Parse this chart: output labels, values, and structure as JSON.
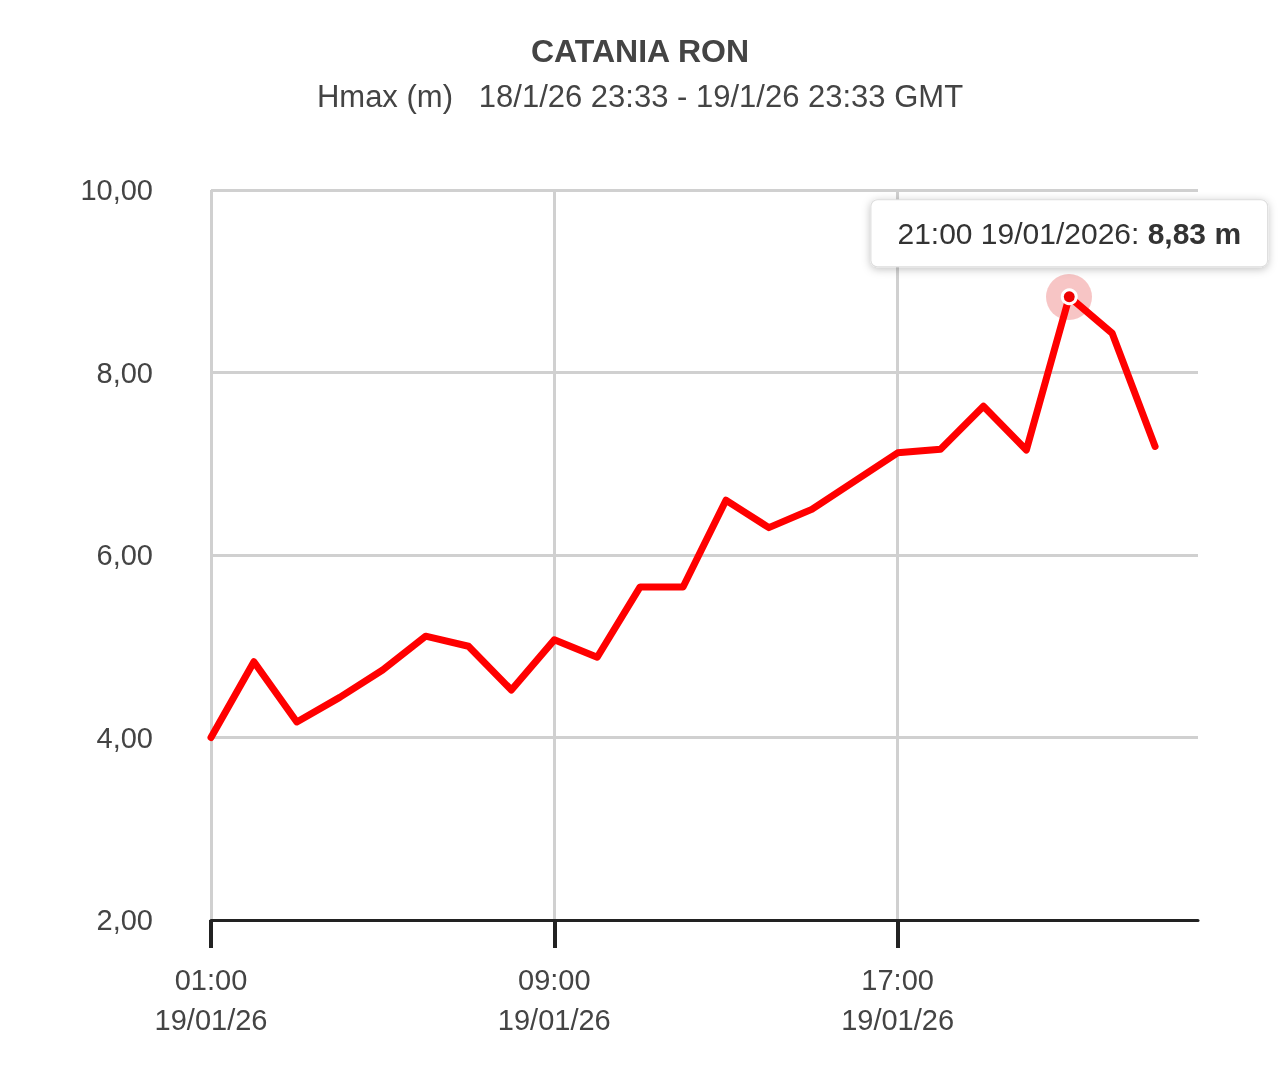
{
  "chart_data": {
    "type": "line",
    "title": "CATANIA RON",
    "subtitle": "Hmax (m)   18/1/26 23:33 - 19/1/26 23:33 GMT",
    "categories": [
      "01:00\n19/01/26",
      null,
      null,
      null,
      null,
      null,
      null,
      null,
      "09:00\n19/01/26",
      null,
      null,
      null,
      null,
      null,
      null,
      null,
      "17:00\n19/01/26",
      null,
      null,
      null,
      null,
      null,
      null,
      null
    ],
    "series": [
      {
        "color": "#ff0000",
        "values": [
          4.0,
          4.83,
          4.17,
          4.44,
          4.74,
          5.11,
          5.0,
          4.52,
          5.07,
          4.88,
          5.65,
          5.65,
          6.6,
          6.3,
          6.5,
          6.81,
          7.12,
          7.16,
          7.63,
          7.15,
          8.83,
          8.43,
          7.19,
          null
        ]
      }
    ],
    "ylim": [
      2,
      10
    ],
    "yticks": [
      {
        "value": 2,
        "label": "2,00"
      },
      {
        "value": 4,
        "label": "4,00"
      },
      {
        "value": 6,
        "label": "6,00"
      },
      {
        "value": 8,
        "label": "8,00"
      },
      {
        "value": 10,
        "label": "10,00"
      }
    ],
    "annotations": [
      {
        "text": "21:00 19/01/2026: 8,83 m",
        "y": 8.83
      }
    ],
    "grid": true,
    "legend": false,
    "marker": "none",
    "line_style": "solid"
  }
}
